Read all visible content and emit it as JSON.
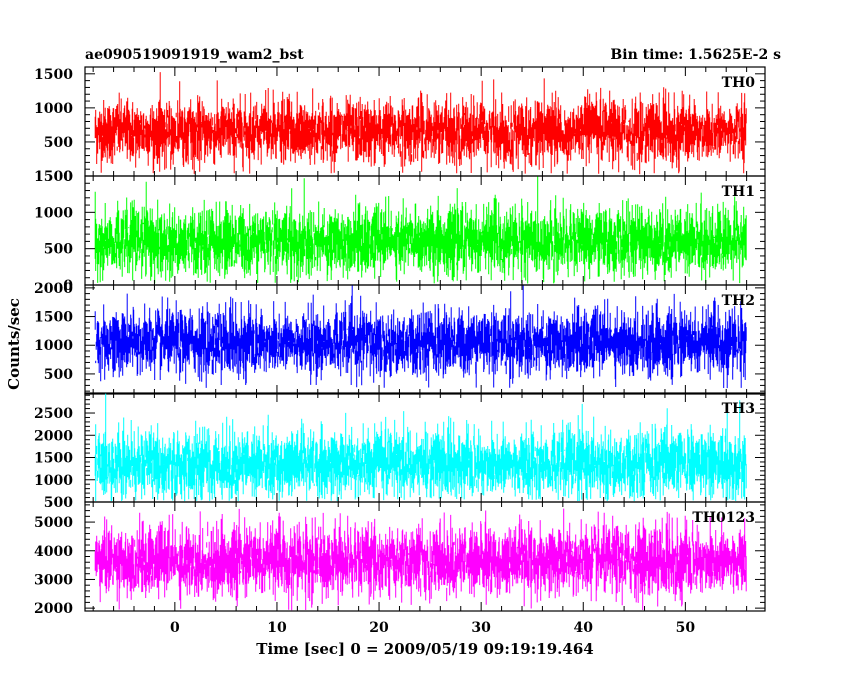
{
  "header": {
    "left_title": "ae090519091919_wam2_bst",
    "right_title": "Bin time: 1.5625E-2 s"
  },
  "chart_data": {
    "type": "line",
    "x_label": "Time [sec] 0 = 2009/05/19 09:19:19.464",
    "y_label": "Counts/sec",
    "xlim": [
      -8.8,
      57.8
    ],
    "x_ticks": [
      0,
      10,
      20,
      30,
      40,
      50
    ],
    "data_x_range": [
      -7.8,
      56.0
    ],
    "bin_time": 0.015625,
    "panels": [
      {
        "name": "TH0",
        "color": "#ff0000",
        "ylim": [
          0,
          1600
        ],
        "y_ticks": [
          0,
          500,
          1000,
          1500
        ],
        "mean": 650,
        "sd": 230,
        "clip_low": 20
      },
      {
        "name": "TH1",
        "color": "#00ff00",
        "ylim": [
          0,
          1500
        ],
        "y_ticks": [
          0,
          500,
          1000,
          1500
        ],
        "mean": 600,
        "sd": 230,
        "clip_low": 20
      },
      {
        "name": "TH2",
        "color": "#0000ff",
        "ylim": [
          150,
          2050
        ],
        "y_ticks": [
          500,
          1000,
          1500,
          2000
        ],
        "mean": 1050,
        "sd": 280,
        "clip_low": 250
      },
      {
        "name": "TH3",
        "color": "#00ffff",
        "ylim": [
          500,
          2950
        ],
        "y_ticks": [
          500,
          1000,
          1500,
          2000,
          2500
        ],
        "mean": 1350,
        "sd": 380,
        "clip_low": 520
      },
      {
        "name": "TH0123",
        "color": "#ff00ff",
        "ylim": [
          1900,
          5700
        ],
        "y_ticks": [
          2000,
          3000,
          4000,
          5000
        ],
        "mean": 3650,
        "sd": 600,
        "clip_low": 1920
      }
    ]
  }
}
